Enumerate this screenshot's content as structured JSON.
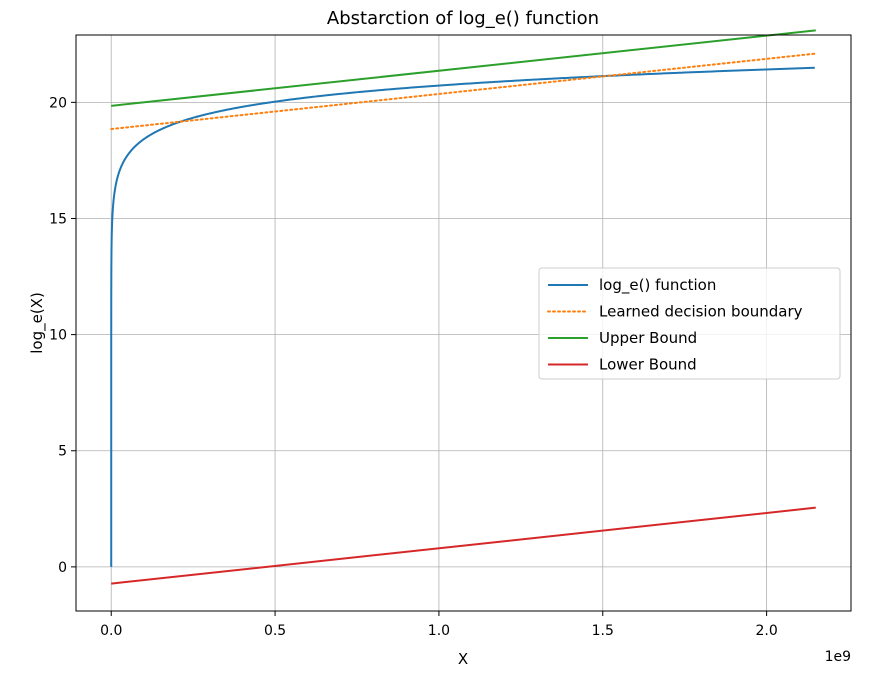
{
  "chart_data": {
    "type": "line",
    "title": "Abstarction of log_e() function",
    "xlabel": "X",
    "ylabel": "log_e(X)",
    "x_offset_label": "1e9",
    "xlim": [
      -0.1075,
      2.2575
    ],
    "ylim": [
      -1.9,
      22.9
    ],
    "x_scale_note": "x values in units of 1e9",
    "xticks": [
      0.0,
      0.5,
      1.0,
      1.5,
      2.0
    ],
    "xtick_labels": [
      "0.0",
      "0.5",
      "1.0",
      "1.5",
      "2.0"
    ],
    "yticks": [
      0,
      5,
      10,
      15,
      20
    ],
    "ytick_labels": [
      "0",
      "5",
      "10",
      "15",
      "20"
    ],
    "grid": true,
    "legend_position": "center-right",
    "series": [
      {
        "name": "log_e() function",
        "kind": "log",
        "color": "#1f77b4",
        "style": "solid",
        "x_range": [
          1e-09,
          2.147
        ]
      },
      {
        "name": "Learned decision boundary",
        "kind": "linear",
        "color": "#ff7f0e",
        "style": "dotted",
        "x": [
          0.0,
          2.15
        ],
        "y": [
          18.85,
          22.1
        ]
      },
      {
        "name": "Upper Bound",
        "kind": "linear",
        "color": "#2ca02c",
        "style": "solid",
        "x": [
          0.0,
          2.15
        ],
        "y": [
          19.85,
          23.1
        ]
      },
      {
        "name": "Lower Bound",
        "kind": "linear",
        "color": "#d62728",
        "style": "solid",
        "x": [
          0.0,
          2.15
        ],
        "y": [
          -0.72,
          2.55
        ]
      }
    ]
  }
}
